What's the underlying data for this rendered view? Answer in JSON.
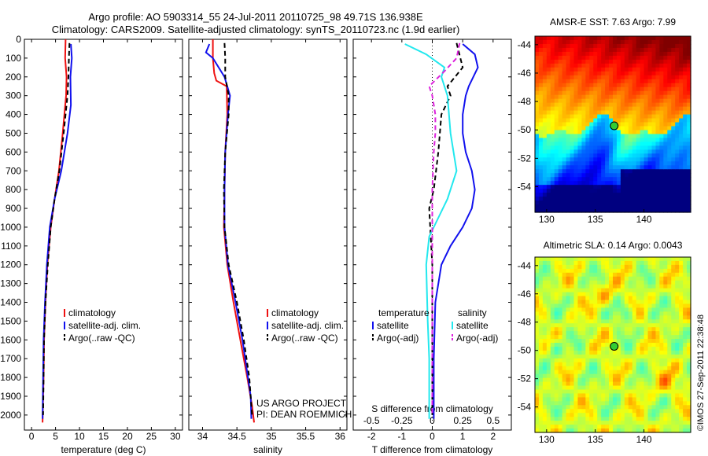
{
  "header": {
    "line1": "Argo profile: AO 5903314_55 24-Jul-2011 20110725_98 49.71S 136.938E",
    "line2": "Climatology: CARS2009. Satellite-adjusted climatology: synTS_20110723.nc (1.9d earlier)"
  },
  "credit": "©IMOS 27-Sep-2011 22:38:48",
  "colors": {
    "red": "#ee1111",
    "blue": "#1111ee",
    "black": "#000000",
    "cyan": "#22e8ee",
    "magenta": "#dd22dd"
  },
  "chart_data": [
    {
      "type": "line",
      "title": "",
      "xlabel": "temperature (deg C)",
      "ylabel": "",
      "xlim": [
        -1.5,
        31.5
      ],
      "ylim": [
        2080,
        0
      ],
      "xticks": [
        0,
        5,
        10,
        15,
        20,
        25,
        30
      ],
      "yticks": [
        0,
        100,
        200,
        300,
        400,
        500,
        600,
        700,
        800,
        900,
        1000,
        1100,
        1200,
        1300,
        1400,
        1500,
        1600,
        1700,
        1800,
        1900,
        2000
      ],
      "legend": [
        "climatology",
        "satellite-adj. clim.",
        "Argo(..raw -QC)"
      ],
      "series": [
        {
          "name": "climatology",
          "color": "red",
          "dash": "solid",
          "x": [
            7.1,
            7.0,
            7.3,
            7.2,
            6.5,
            5.7,
            4.8,
            4.0,
            3.3,
            2.9,
            2.6,
            2.5,
            2.3
          ],
          "y": [
            0,
            100,
            200,
            300,
            500,
            700,
            850,
            1000,
            1200,
            1400,
            1600,
            1800,
            2040
          ]
        },
        {
          "name": "satellite-adj. clim.",
          "color": "blue",
          "dash": "solid",
          "x": [
            8.2,
            8.4,
            8.1,
            8.2,
            7.5,
            6.2,
            4.8,
            3.8,
            3.2,
            2.8,
            2.5,
            2.4,
            2.3
          ],
          "y": [
            25,
            100,
            200,
            350,
            500,
            700,
            850,
            1000,
            1200,
            1400,
            1600,
            1800,
            2020
          ]
        },
        {
          "name": "Argo(..raw -QC)",
          "color": "black",
          "dash": "dashed",
          "x": [
            7.9,
            7.8,
            7.7,
            7.5,
            6.7,
            5.8,
            4.8,
            4.0,
            3.4,
            2.9,
            2.6,
            2.5,
            2.4
          ],
          "y": [
            20,
            100,
            200,
            300,
            500,
            700,
            850,
            1000,
            1200,
            1400,
            1600,
            1800,
            2000
          ]
        }
      ]
    },
    {
      "type": "line",
      "title": "",
      "xlabel": "salinity",
      "ylabel": "",
      "xlim": [
        33.8,
        36.1
      ],
      "ylim": [
        2080,
        0
      ],
      "xticks": [
        34,
        34.5,
        35,
        35.5,
        36
      ],
      "legend": [
        "climatology",
        "satellite-adj. clim.",
        "Argo(..raw -QC)"
      ],
      "annotations": [
        "US ARGO PROJECT",
        "PI: DEAN ROEMMICH"
      ],
      "series": [
        {
          "name": "climatology",
          "color": "red",
          "dash": "solid",
          "x": [
            34.15,
            34.15,
            34.17,
            34.2,
            34.35,
            34.36,
            34.33,
            34.32,
            34.31,
            34.36,
            34.45,
            34.55,
            34.65,
            34.72,
            34.75
          ],
          "y": [
            0,
            100,
            180,
            220,
            250,
            400,
            600,
            800,
            1000,
            1200,
            1400,
            1600,
            1800,
            1950,
            2040
          ]
        },
        {
          "name": "satellite-adj. clim.",
          "color": "blue",
          "dash": "solid",
          "x": [
            34.1,
            34.05,
            34.15,
            34.32,
            34.4,
            34.37,
            34.33,
            34.32,
            34.32,
            34.37,
            34.48,
            34.58,
            34.66,
            34.7,
            34.71
          ],
          "y": [
            25,
            70,
            100,
            200,
            300,
            400,
            600,
            800,
            1000,
            1200,
            1400,
            1600,
            1800,
            1900,
            2020
          ]
        },
        {
          "name": "Argo(..raw -QC)",
          "color": "black",
          "dash": "dashed",
          "x": [
            34.32,
            34.33,
            34.33,
            34.38,
            34.38,
            34.33,
            34.31,
            34.32,
            34.38,
            34.5,
            34.6,
            34.68,
            34.72
          ],
          "y": [
            20,
            100,
            200,
            300,
            400,
            600,
            800,
            1000,
            1200,
            1400,
            1600,
            1800,
            2000
          ]
        }
      ]
    },
    {
      "type": "line",
      "title": "",
      "xlabel": "T difference from climatology",
      "ylabel": "",
      "xlim": [
        -2.6,
        2.6
      ],
      "ylim": [
        2080,
        0
      ],
      "xticks": [
        -2,
        -1,
        0,
        1,
        2
      ],
      "top_axis_label": "S difference from climatology",
      "top_ticks": [
        "-0.5",
        "-0.25",
        "0",
        "0.25",
        "0.5"
      ],
      "legend": [
        "temperature",
        "satellite",
        "Argo(-adj)",
        "salinity",
        "satellite",
        "Argo(-adj)"
      ],
      "series": [
        {
          "name": "temperature satellite",
          "color": "blue",
          "dash": "solid",
          "x": [
            1.0,
            1.4,
            1.5,
            1.2,
            1.1,
            1.0,
            1.0,
            1.1,
            1.3,
            1.4,
            1.3,
            1.0,
            0.6,
            0.3,
            0.1,
            0.05,
            0.05
          ],
          "y": [
            25,
            80,
            150,
            250,
            300,
            400,
            500,
            600,
            700,
            800,
            900,
            1000,
            1100,
            1200,
            1400,
            1700,
            2020
          ]
        },
        {
          "name": "temperature Argo(-adj)",
          "color": "black",
          "dash": "dashed",
          "x": [
            0.8,
            1.0,
            0.5,
            0.6,
            0.3,
            0.2,
            0.05,
            -0.1,
            0.0,
            0.0,
            0.0
          ],
          "y": [
            20,
            150,
            250,
            300,
            400,
            600,
            800,
            900,
            1200,
            1600,
            2000
          ]
        },
        {
          "name": "salinity satellite",
          "color": "cyan",
          "dash": "solid",
          "x": [
            -0.9,
            -0.2,
            0.4,
            0.3,
            0.5,
            0.6,
            0.8,
            0.5,
            0.2,
            -0.1,
            -0.2,
            -0.15,
            -0.1,
            -0.1,
            -0.1
          ],
          "y": [
            25,
            80,
            150,
            200,
            300,
            500,
            700,
            850,
            950,
            1050,
            1200,
            1500,
            1700,
            1900,
            2020
          ]
        },
        {
          "name": "salinity Argo(-adj)",
          "color": "magenta",
          "dash": "dashed",
          "x": [
            0.9,
            0.8,
            0.4,
            -0.1,
            0.0,
            0.1,
            0.1,
            0.05,
            0.0,
            0.0,
            0.0,
            0.0
          ],
          "y": [
            20,
            100,
            170,
            250,
            300,
            400,
            500,
            600,
            800,
            1200,
            1600,
            2000
          ]
        }
      ]
    },
    {
      "type": "heatmap",
      "title": "AMSR-E SST: 7.63 Argo: 7.99",
      "xlim": [
        128.8,
        144.8
      ],
      "ylim": [
        -55.8,
        -43.4
      ],
      "xticks": [
        130,
        135,
        140
      ],
      "yticks": [
        -44,
        -46,
        -48,
        -50,
        -52,
        -54
      ],
      "marker": {
        "lon": 136.94,
        "lat": -49.71,
        "color": "#33cc33"
      }
    },
    {
      "type": "heatmap",
      "title": "Altimetric SLA: 0.14 Argo: 0.0043",
      "xlim": [
        128.8,
        144.8
      ],
      "ylim": [
        -55.8,
        -43.4
      ],
      "xticks": [
        130,
        135,
        140
      ],
      "yticks": [
        -44,
        -46,
        -48,
        -50,
        -52,
        -54
      ],
      "marker": {
        "lon": 136.94,
        "lat": -49.71,
        "color": "#33cc33"
      }
    }
  ]
}
